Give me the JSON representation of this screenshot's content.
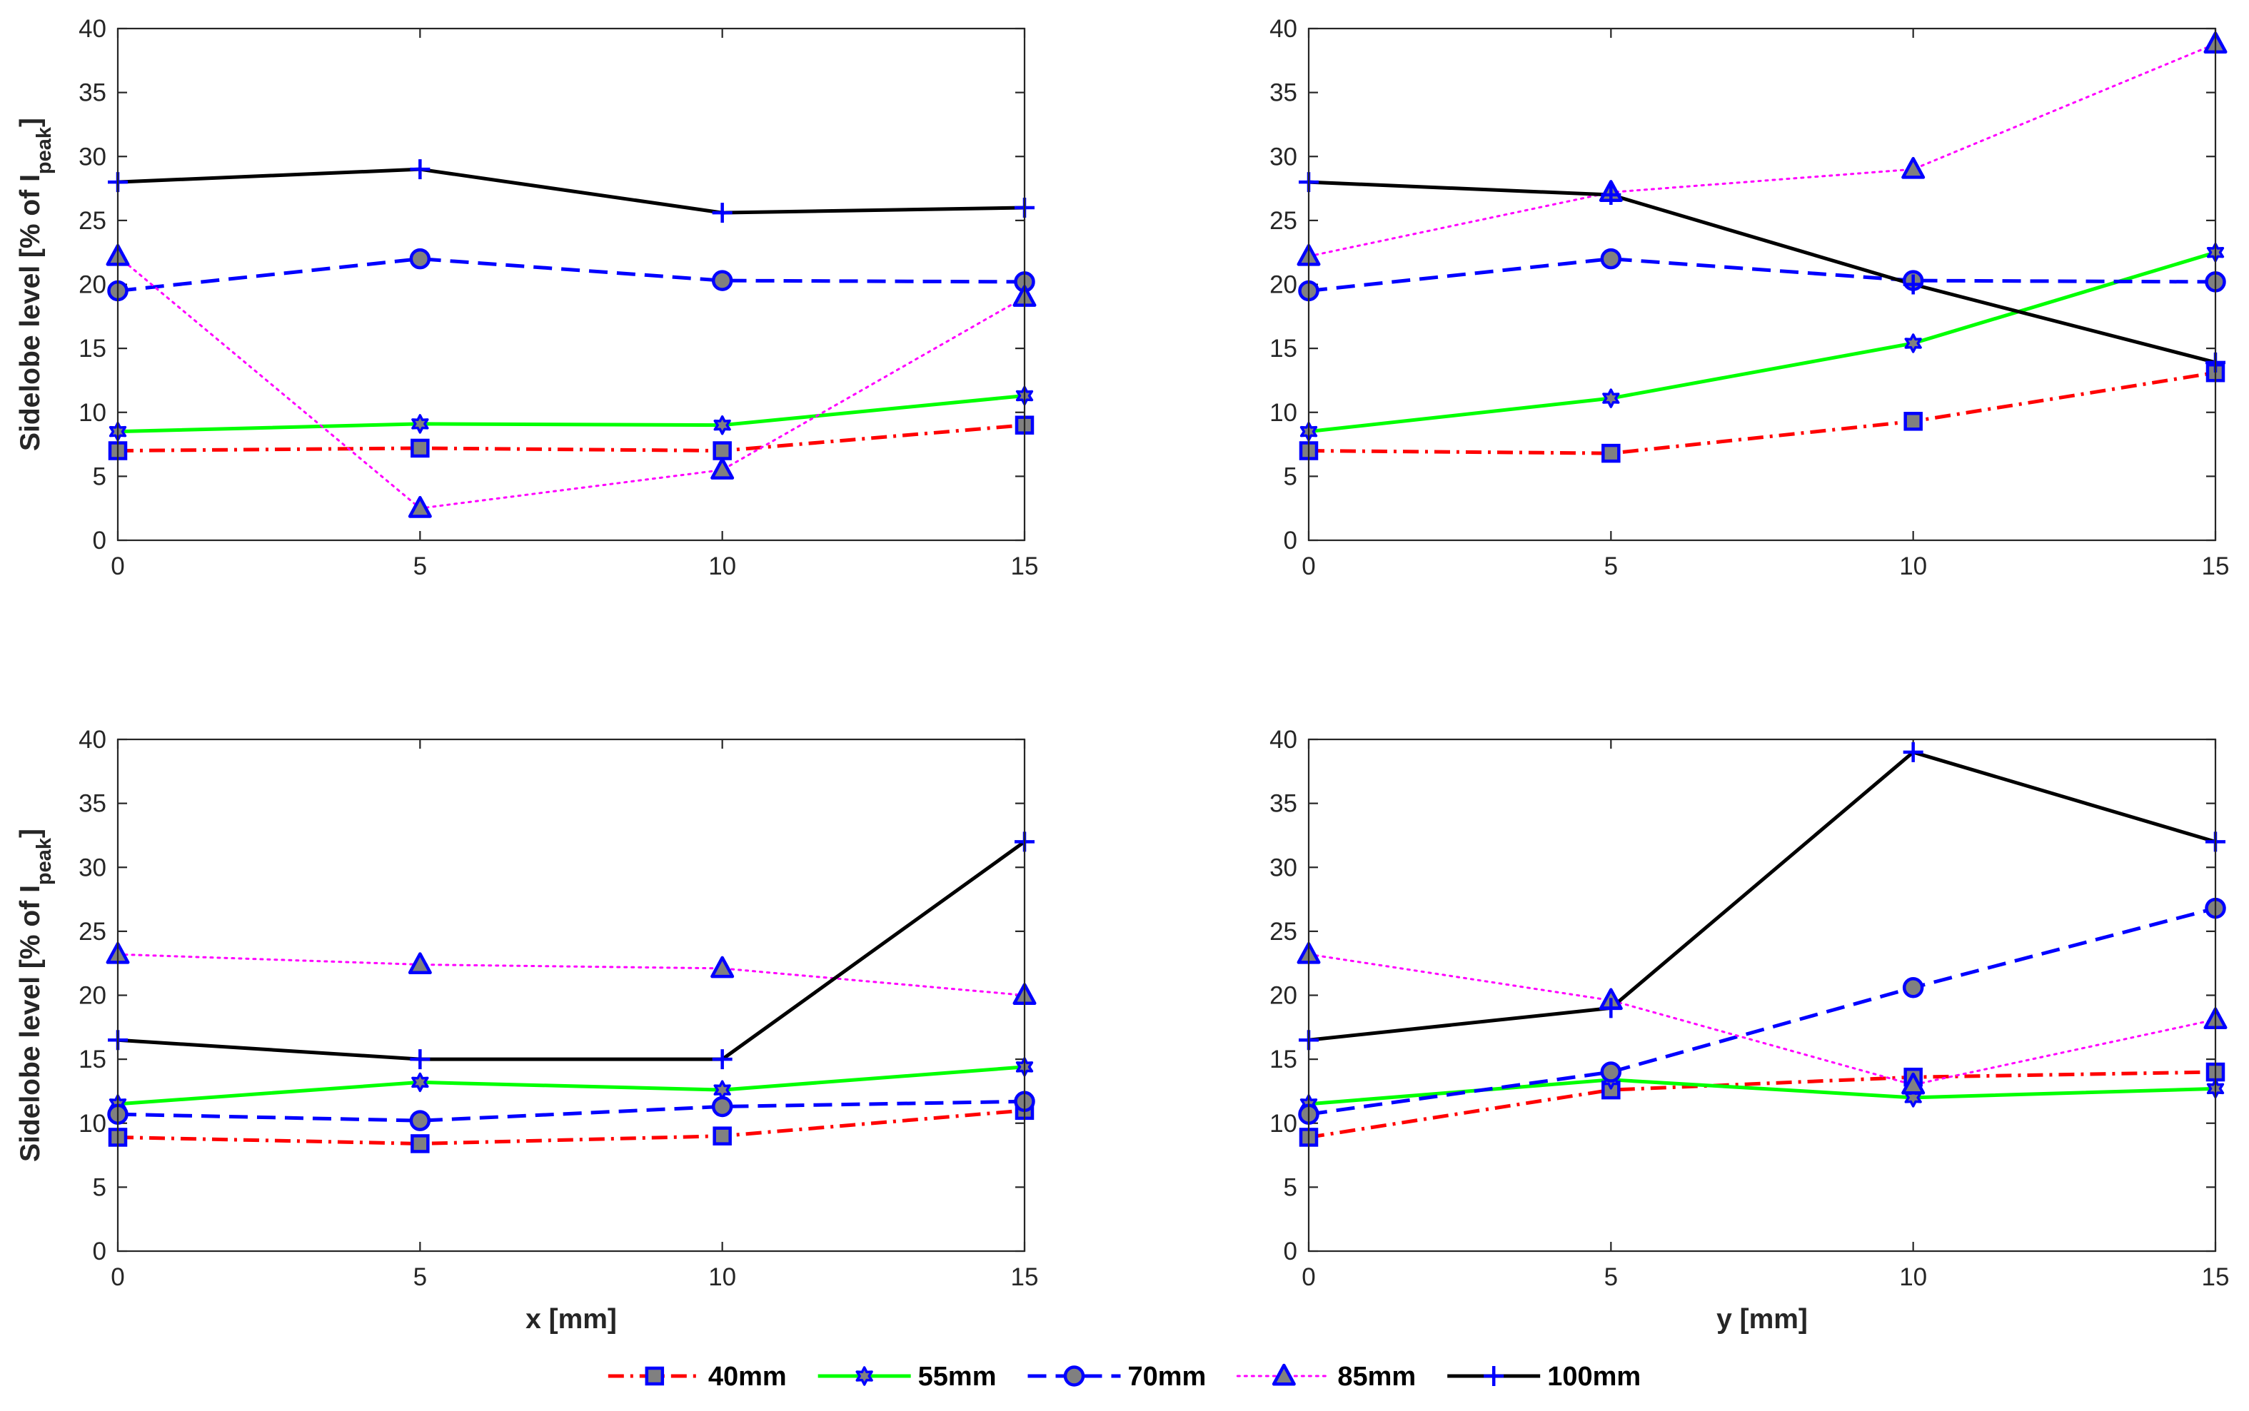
{
  "chart_data": [
    {
      "type": "line",
      "panel": "top-left",
      "title": "",
      "xlabel": "",
      "ylabel": "Sidelobe level [% of I",
      "ylabel_sub": "peak",
      "ylabel_end": "]",
      "x": [
        0,
        5,
        10,
        15
      ],
      "xlim": [
        0,
        15
      ],
      "ylim": [
        0,
        40
      ],
      "xticks": [
        "0",
        "5",
        "10",
        "15"
      ],
      "yticks": [
        "0",
        "5",
        "10",
        "15",
        "20",
        "25",
        "30",
        "35",
        "40"
      ],
      "grid": false,
      "series": [
        {
          "name": "40mm",
          "values": [
            7.0,
            7.2,
            7.0,
            9.0
          ]
        },
        {
          "name": "55mm",
          "values": [
            8.5,
            9.1,
            9.0,
            11.3
          ]
        },
        {
          "name": "70mm",
          "values": [
            19.5,
            22.0,
            20.3,
            20.2
          ]
        },
        {
          "name": "85mm",
          "values": [
            22.2,
            2.5,
            5.5,
            19.0
          ]
        },
        {
          "name": "100mm",
          "values": [
            28.0,
            29.0,
            25.6,
            26.0
          ]
        }
      ]
    },
    {
      "type": "line",
      "panel": "top-right",
      "title": "",
      "xlabel": "",
      "ylabel": "",
      "x": [
        0,
        5,
        10,
        15
      ],
      "xlim": [
        0,
        15
      ],
      "ylim": [
        0,
        40
      ],
      "xticks": [
        "0",
        "5",
        "10",
        "15"
      ],
      "yticks": [
        "0",
        "5",
        "10",
        "15",
        "20",
        "25",
        "30",
        "35",
        "40"
      ],
      "grid": false,
      "series": [
        {
          "name": "40mm",
          "values": [
            7.0,
            6.8,
            9.3,
            13.1
          ]
        },
        {
          "name": "55mm",
          "values": [
            8.5,
            11.1,
            15.4,
            22.5
          ]
        },
        {
          "name": "70mm",
          "values": [
            19.5,
            22.0,
            20.3,
            20.2
          ]
        },
        {
          "name": "85mm",
          "values": [
            22.2,
            27.2,
            29.0,
            38.8
          ]
        },
        {
          "name": "100mm",
          "values": [
            28.0,
            27.0,
            20.0,
            13.9
          ]
        }
      ]
    },
    {
      "type": "line",
      "panel": "bottom-left",
      "title": "",
      "xlabel": "x [mm]",
      "ylabel": "Sidelobe level [% of I",
      "ylabel_sub": "peak",
      "ylabel_end": "]",
      "x": [
        0,
        5,
        10,
        15
      ],
      "xlim": [
        0,
        15
      ],
      "ylim": [
        0,
        40
      ],
      "xticks": [
        "0",
        "5",
        "10",
        "15"
      ],
      "yticks": [
        "0",
        "5",
        "10",
        "15",
        "20",
        "25",
        "30",
        "35",
        "40"
      ],
      "grid": false,
      "series": [
        {
          "name": "40mm",
          "values": [
            8.9,
            8.4,
            9.0,
            11.0
          ]
        },
        {
          "name": "55mm",
          "values": [
            11.5,
            13.2,
            12.6,
            14.4
          ]
        },
        {
          "name": "70mm",
          "values": [
            10.7,
            10.2,
            11.3,
            11.7
          ]
        },
        {
          "name": "85mm",
          "values": [
            23.2,
            22.4,
            22.1,
            20.0
          ]
        },
        {
          "name": "100mm",
          "values": [
            16.5,
            15.0,
            15.0,
            32.0
          ]
        }
      ]
    },
    {
      "type": "line",
      "panel": "bottom-right",
      "title": "",
      "xlabel": "y [mm]",
      "ylabel": "",
      "x": [
        0,
        5,
        10,
        15
      ],
      "xlim": [
        0,
        15
      ],
      "ylim": [
        0,
        40
      ],
      "xticks": [
        "0",
        "5",
        "10",
        "15"
      ],
      "yticks": [
        "0",
        "5",
        "10",
        "15",
        "20",
        "25",
        "30",
        "35",
        "40"
      ],
      "grid": false,
      "series": [
        {
          "name": "40mm",
          "values": [
            8.9,
            12.6,
            13.6,
            14.0
          ]
        },
        {
          "name": "55mm",
          "values": [
            11.5,
            13.4,
            12.0,
            12.7
          ]
        },
        {
          "name": "70mm",
          "values": [
            10.7,
            14.0,
            20.6,
            26.8
          ]
        },
        {
          "name": "85mm",
          "values": [
            23.2,
            19.6,
            13.0,
            18.1
          ]
        },
        {
          "name": "100mm",
          "values": [
            16.5,
            19.0,
            39.0,
            32.0
          ]
        }
      ]
    }
  ],
  "legend": {
    "placement": "bottom-center",
    "entries": [
      {
        "name": "40mm",
        "line_color": "#ff0000",
        "dash": "dash-dot",
        "marker": "square",
        "marker_face": "#808080",
        "marker_edge": "#0000ff"
      },
      {
        "name": "55mm",
        "line_color": "#00ff00",
        "dash": "solid",
        "marker": "hexagram",
        "marker_face": "#808080",
        "marker_edge": "#0000ff"
      },
      {
        "name": "70mm",
        "line_color": "#0000ff",
        "dash": "dashed",
        "marker": "circle",
        "marker_face": "#808080",
        "marker_edge": "#0000ff"
      },
      {
        "name": "85mm",
        "line_color": "#ff00ff",
        "dash": "dotted",
        "marker": "triangle",
        "marker_face": "#808080",
        "marker_edge": "#0000ff"
      },
      {
        "name": "100mm",
        "line_color": "#000000",
        "dash": "solid",
        "marker": "plus",
        "marker_face": "none",
        "marker_edge": "#0000ff"
      }
    ]
  }
}
